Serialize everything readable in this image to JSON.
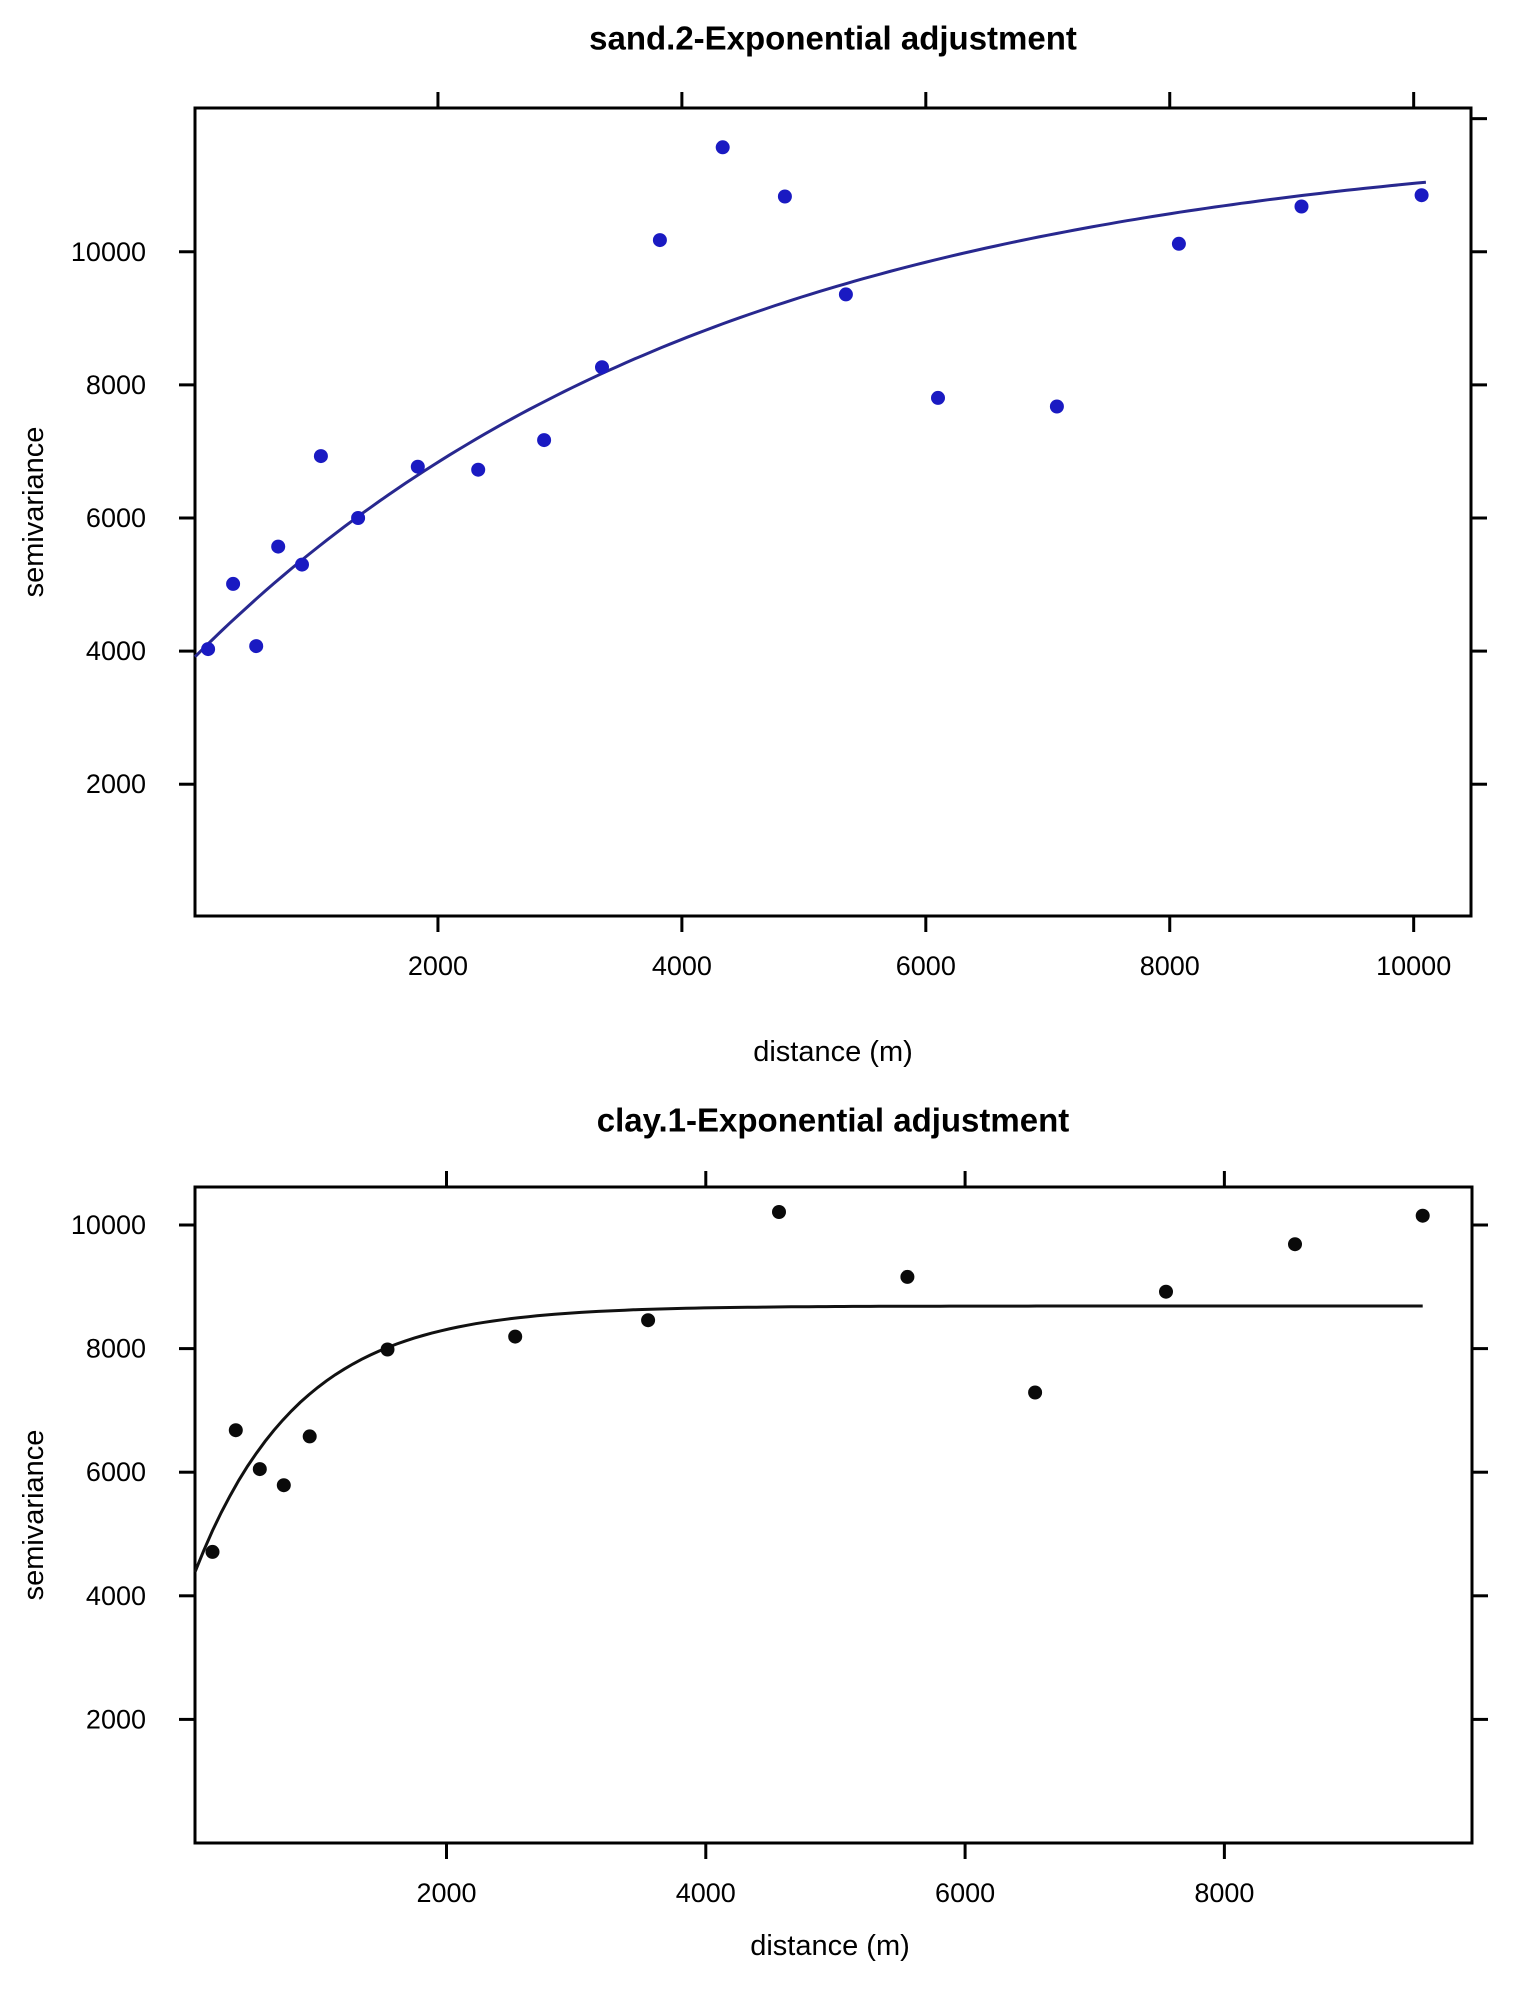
{
  "page": {
    "background_color": "#ffffff"
  },
  "chart_data": [
    {
      "id": "sand2",
      "type": "scatter",
      "title": "sand.2-Exponential adjustment",
      "xlabel": "distance (m)",
      "ylabel": "semivariance",
      "legend": "none",
      "grid": false,
      "point_color": "#1a1ac2",
      "line_color": "#28288f",
      "axis_color": "#000000",
      "xlim": [
        8,
        10470
      ],
      "ylim": [
        20,
        12160
      ],
      "x_ticks": [
        2000,
        4000,
        6000,
        8000,
        10000
      ],
      "y_ticks_left": [
        2000,
        4000,
        6000,
        8000,
        10000
      ],
      "y_ticks_right": [
        2000,
        4000,
        6000,
        8000,
        10000,
        12000
      ],
      "points": [
        {
          "distance": 115,
          "semivariance": 4030
        },
        {
          "distance": 320,
          "semivariance": 5010
        },
        {
          "distance": 510,
          "semivariance": 4075
        },
        {
          "distance": 690,
          "semivariance": 5570
        },
        {
          "distance": 885,
          "semivariance": 5300
        },
        {
          "distance": 1040,
          "semivariance": 6930
        },
        {
          "distance": 1345,
          "semivariance": 6000
        },
        {
          "distance": 1835,
          "semivariance": 6770
        },
        {
          "distance": 2330,
          "semivariance": 6725
        },
        {
          "distance": 2870,
          "semivariance": 7170
        },
        {
          "distance": 3345,
          "semivariance": 8265
        },
        {
          "distance": 3820,
          "semivariance": 10175
        },
        {
          "distance": 4335,
          "semivariance": 11570
        },
        {
          "distance": 4845,
          "semivariance": 10830
        },
        {
          "distance": 5345,
          "semivariance": 9360
        },
        {
          "distance": 6100,
          "semivariance": 7805
        },
        {
          "distance": 7075,
          "semivariance": 7675
        },
        {
          "distance": 8075,
          "semivariance": 10120
        },
        {
          "distance": 9080,
          "semivariance": 10680
        },
        {
          "distance": 10065,
          "semivariance": 10850
        }
      ],
      "fit_curve": {
        "model": "exponential",
        "asymptote": 11800,
        "drop": 7900,
        "range_m": 4300,
        "d_start": 8,
        "d_end": 10100
      }
    },
    {
      "id": "clay1",
      "type": "scatter",
      "title": "clay.1-Exponential adjustment",
      "xlabel": "distance (m)",
      "ylabel": "semivariance",
      "legend": "none",
      "grid": false,
      "point_color": "#0a0a0a",
      "line_color": "#111111",
      "axis_color": "#000000",
      "xlim": [
        60,
        9910
      ],
      "ylim": [
        0,
        10615
      ],
      "x_ticks": [
        2000,
        4000,
        6000,
        8000
      ],
      "y_ticks_left": [
        2000,
        4000,
        6000,
        8000,
        10000
      ],
      "y_ticks_right": [
        2000,
        4000,
        6000,
        8000,
        10000
      ],
      "points": [
        {
          "distance": 195,
          "semivariance": 4710
        },
        {
          "distance": 375,
          "semivariance": 6680
        },
        {
          "distance": 560,
          "semivariance": 6050
        },
        {
          "distance": 745,
          "semivariance": 5790
        },
        {
          "distance": 945,
          "semivariance": 6580
        },
        {
          "distance": 1545,
          "semivariance": 7985
        },
        {
          "distance": 2530,
          "semivariance": 8195
        },
        {
          "distance": 3555,
          "semivariance": 8460
        },
        {
          "distance": 4565,
          "semivariance": 10210
        },
        {
          "distance": 5555,
          "semivariance": 9160
        },
        {
          "distance": 6540,
          "semivariance": 7290
        },
        {
          "distance": 7550,
          "semivariance": 8920
        },
        {
          "distance": 8545,
          "semivariance": 9690
        },
        {
          "distance": 9530,
          "semivariance": 10150
        }
      ],
      "fit_curve": {
        "model": "exponential",
        "asymptote": 8690,
        "drop": 4640,
        "range_m": 800,
        "d_start": 60,
        "d_end": 9530
      }
    }
  ]
}
